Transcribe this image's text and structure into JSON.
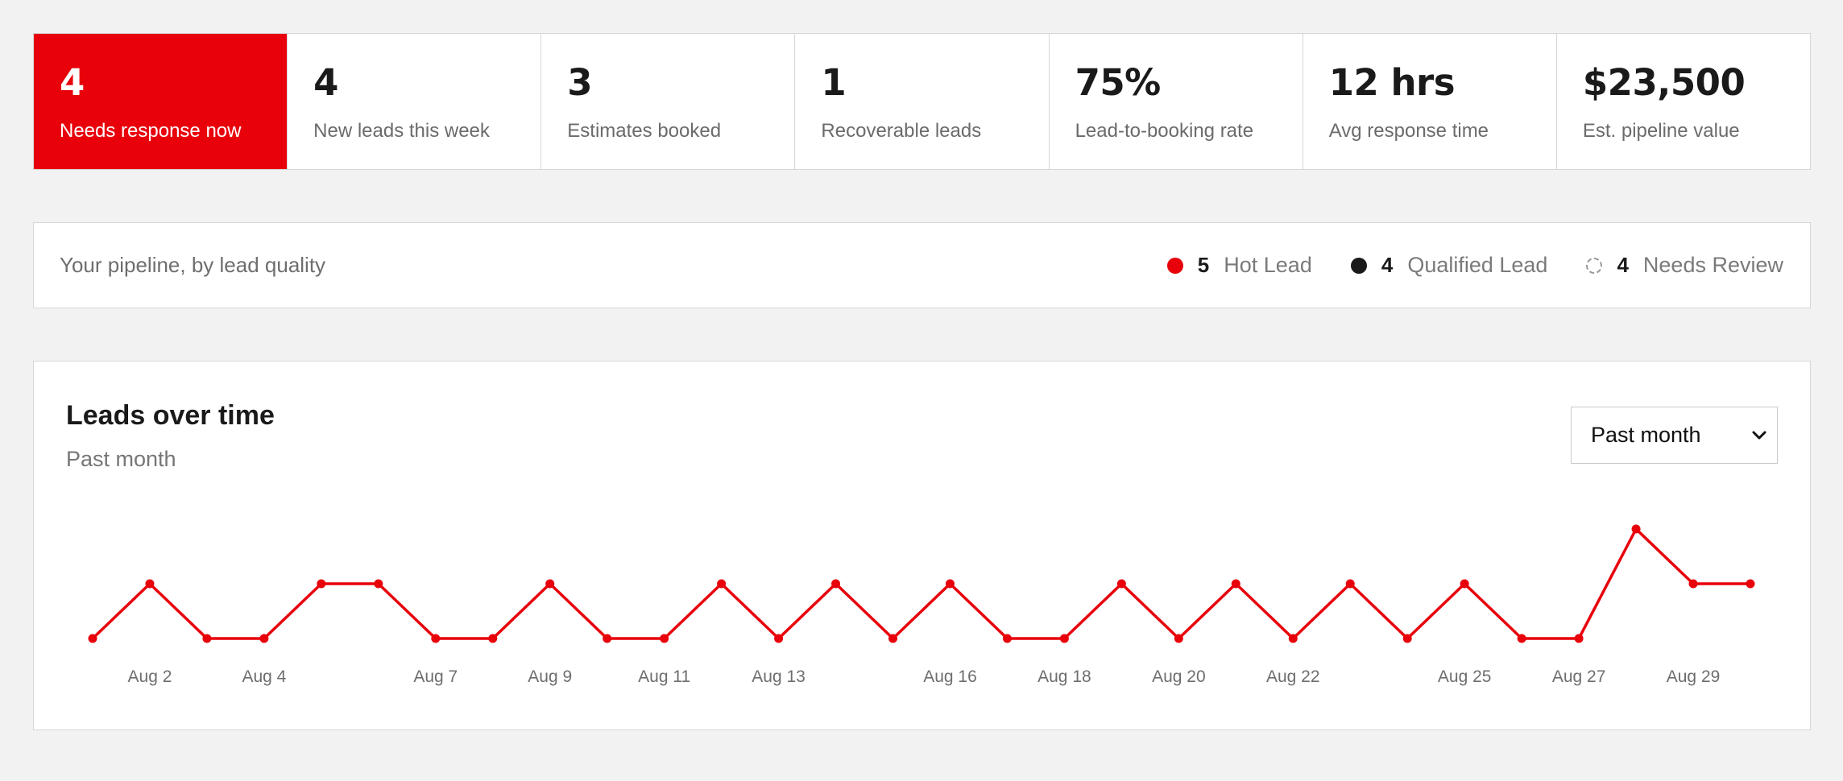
{
  "kpis": [
    {
      "value": "4",
      "label": "Needs response now"
    },
    {
      "value": "4",
      "label": "New leads this week"
    },
    {
      "value": "3",
      "label": "Estimates booked"
    },
    {
      "value": "1",
      "label": "Recoverable leads"
    },
    {
      "value": "75%",
      "label": "Lead-to-booking rate"
    },
    {
      "value": "12 hrs",
      "label": "Avg response time"
    },
    {
      "value": "$23,500",
      "label": "Est. pipeline value"
    }
  ],
  "quality": {
    "title": "Your pipeline, by lead quality",
    "items": [
      {
        "count": "5",
        "label": "Hot Lead",
        "color": "#e8000b",
        "style": "filled"
      },
      {
        "count": "4",
        "label": "Qualified Lead",
        "color": "#1a1a1a",
        "style": "filled"
      },
      {
        "count": "4",
        "label": "Needs Review",
        "color": "#9a9a9a",
        "style": "dashed"
      }
    ]
  },
  "chart_card": {
    "title": "Leads over time",
    "subtitle": "Past month",
    "range_select": {
      "value": "Past month",
      "icon": "chevron-down-icon"
    }
  },
  "chart_data": {
    "type": "line",
    "color": "#e8000b",
    "x": [
      "Aug 1",
      "Aug 2",
      "Aug 3",
      "Aug 4",
      "Aug 5",
      "Aug 6",
      "Aug 7",
      "Aug 8",
      "Aug 9",
      "Aug 10",
      "Aug 11",
      "Aug 12",
      "Aug 13",
      "Aug 14",
      "Aug 15",
      "Aug 16",
      "Aug 17",
      "Aug 18",
      "Aug 19",
      "Aug 20",
      "Aug 21",
      "Aug 22",
      "Aug 23",
      "Aug 24",
      "Aug 25",
      "Aug 26",
      "Aug 27",
      "Aug 28",
      "Aug 29",
      "Aug 30"
    ],
    "values": [
      0,
      1,
      0,
      0,
      1,
      1,
      0,
      0,
      1,
      0,
      0,
      1,
      0,
      1,
      0,
      1,
      0,
      0,
      1,
      0,
      1,
      0,
      1,
      0,
      1,
      0,
      0,
      2,
      1,
      1
    ],
    "tick_labels": [
      {
        "x": "Aug 2",
        "label": "Aug 2"
      },
      {
        "x": "Aug 4",
        "label": "Aug 4"
      },
      {
        "x": "Aug 7",
        "label": "Aug 7"
      },
      {
        "x": "Aug 9",
        "label": "Aug 9"
      },
      {
        "x": "Aug 11",
        "label": "Aug 11"
      },
      {
        "x": "Aug 13",
        "label": "Aug 13"
      },
      {
        "x": "Aug 16",
        "label": "Aug 16"
      },
      {
        "x": "Aug 18",
        "label": "Aug 18"
      },
      {
        "x": "Aug 20",
        "label": "Aug 20"
      },
      {
        "x": "Aug 22",
        "label": "Aug 22"
      },
      {
        "x": "Aug 25",
        "label": "Aug 25"
      },
      {
        "x": "Aug 27",
        "label": "Aug 27"
      },
      {
        "x": "Aug 29",
        "label": "Aug 29"
      }
    ],
    "ylim": [
      0,
      2
    ],
    "grid": false,
    "legend": "none"
  }
}
